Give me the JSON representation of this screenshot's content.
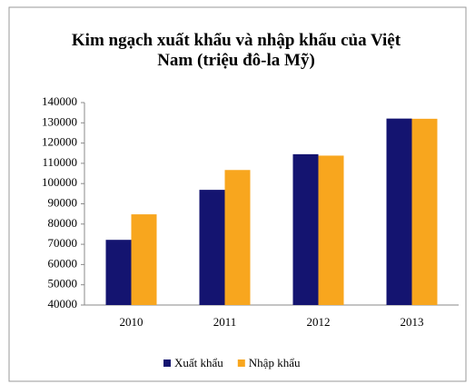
{
  "chart_data": {
    "type": "bar",
    "title": "Kim ngạch xuất khẩu và nhập khẩu của Việt Nam (triệu đô-la Mỹ)",
    "categories": [
      "2010",
      "2011",
      "2012",
      "2013"
    ],
    "series": [
      {
        "name": "Xuất khẩu",
        "color": "#141470",
        "values": [
          72200,
          96900,
          114500,
          132100
        ]
      },
      {
        "name": "Nhập khẩu",
        "color": "#f8a61e",
        "values": [
          84800,
          106700,
          113800,
          132000
        ]
      }
    ],
    "ylim": [
      40000,
      140000
    ],
    "yticks": [
      40000,
      50000,
      60000,
      70000,
      80000,
      90000,
      100000,
      110000,
      120000,
      130000,
      140000
    ],
    "grid": false,
    "legend": "bottom"
  }
}
